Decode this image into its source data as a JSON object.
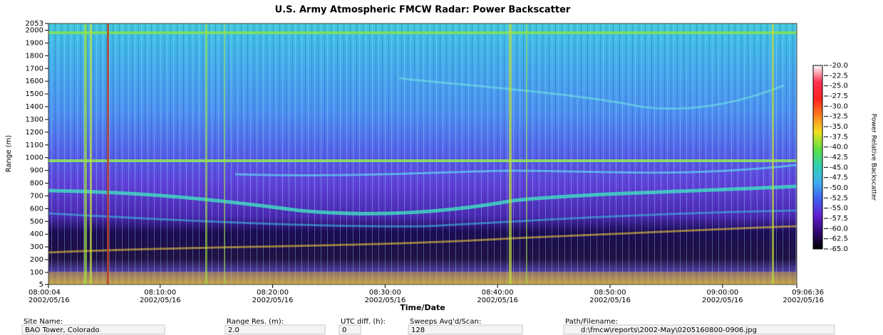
{
  "chart_data": {
    "type": "heatmap",
    "title": "U.S. Army Atmospheric FMCW Radar: Power Backscatter",
    "x_label": "Time/Date",
    "y_label": "Range (m)",
    "xlim": [
      28804,
      32796
    ],
    "xticks": [
      {
        "value": 28804,
        "label": "08:00:04",
        "date": "2002/05/16"
      },
      {
        "value": 29400,
        "label": "08:10:00",
        "date": "2002/05/16"
      },
      {
        "value": 30000,
        "label": "08:20:00",
        "date": "2002/05/16"
      },
      {
        "value": 30600,
        "label": "08:30:00",
        "date": "2002/05/16"
      },
      {
        "value": 31200,
        "label": "08:40:00",
        "date": "2002/05/16"
      },
      {
        "value": 31800,
        "label": "08:50:00",
        "date": "2002/05/16"
      },
      {
        "value": 32400,
        "label": "09:00:00",
        "date": "2002/05/16"
      },
      {
        "value": 32796,
        "label": "09:06:36",
        "date": "2002/05/16"
      }
    ],
    "ylim": [
      5,
      2053
    ],
    "yticks": [
      5,
      100,
      200,
      300,
      400,
      500,
      600,
      700,
      800,
      900,
      1000,
      1100,
      1200,
      1300,
      1400,
      1500,
      1600,
      1700,
      1800,
      1900,
      2000,
      2053
    ],
    "colorbar": {
      "label": "Power Relative Backscatter",
      "lim": [
        -65,
        -20
      ],
      "colors": [
        "#ffffff",
        "#ff3050",
        "#ff2020",
        "#ff8020",
        "#f0e020",
        "#60e040",
        "#30d0b0",
        "#40b0f0",
        "#4060f0",
        "#6020d0",
        "#300870",
        "#000000"
      ],
      "ticks": [
        {
          "value": -20,
          "label": "-20.0"
        },
        {
          "value": -22.5,
          "label": "-22.5"
        },
        {
          "value": -25,
          "label": "-25.0"
        },
        {
          "value": -27.5,
          "label": "-27.5"
        },
        {
          "value": -30,
          "label": "-30.0"
        },
        {
          "value": -32.5,
          "label": "-32.5"
        },
        {
          "value": -35,
          "label": "-35.0"
        },
        {
          "value": -37.5,
          "label": "-37.5"
        },
        {
          "value": -40,
          "label": "-40.0"
        },
        {
          "value": -42.5,
          "label": "-42.5"
        },
        {
          "value": -45,
          "label": "-45.0"
        },
        {
          "value": -47.5,
          "label": "-47.5"
        },
        {
          "value": -50,
          "label": "-50.0"
        },
        {
          "value": -52.5,
          "label": "-52.5"
        },
        {
          "value": -55,
          "label": "-55.0"
        },
        {
          "value": -57.5,
          "label": "-57.5"
        },
        {
          "value": -60,
          "label": "-60.0"
        },
        {
          "value": -62.5,
          "label": "-62.5"
        },
        {
          "value": -65,
          "label": "-65.0"
        }
      ]
    }
  },
  "info_fields": [
    {
      "label": "Site Name:",
      "value": "BAO Tower, Colorado"
    },
    {
      "label": "Range Res. (m):",
      "value": "2.0"
    },
    {
      "label": "UTC diff. (h):",
      "value": "0"
    },
    {
      "label": "Sweeps Avg'd/Scan:",
      "value": "128"
    },
    {
      "label": "Path/Filename:",
      "value": "d:\\fmcw\\reports\\2002-May\\0205160800-0906.jpg"
    }
  ]
}
